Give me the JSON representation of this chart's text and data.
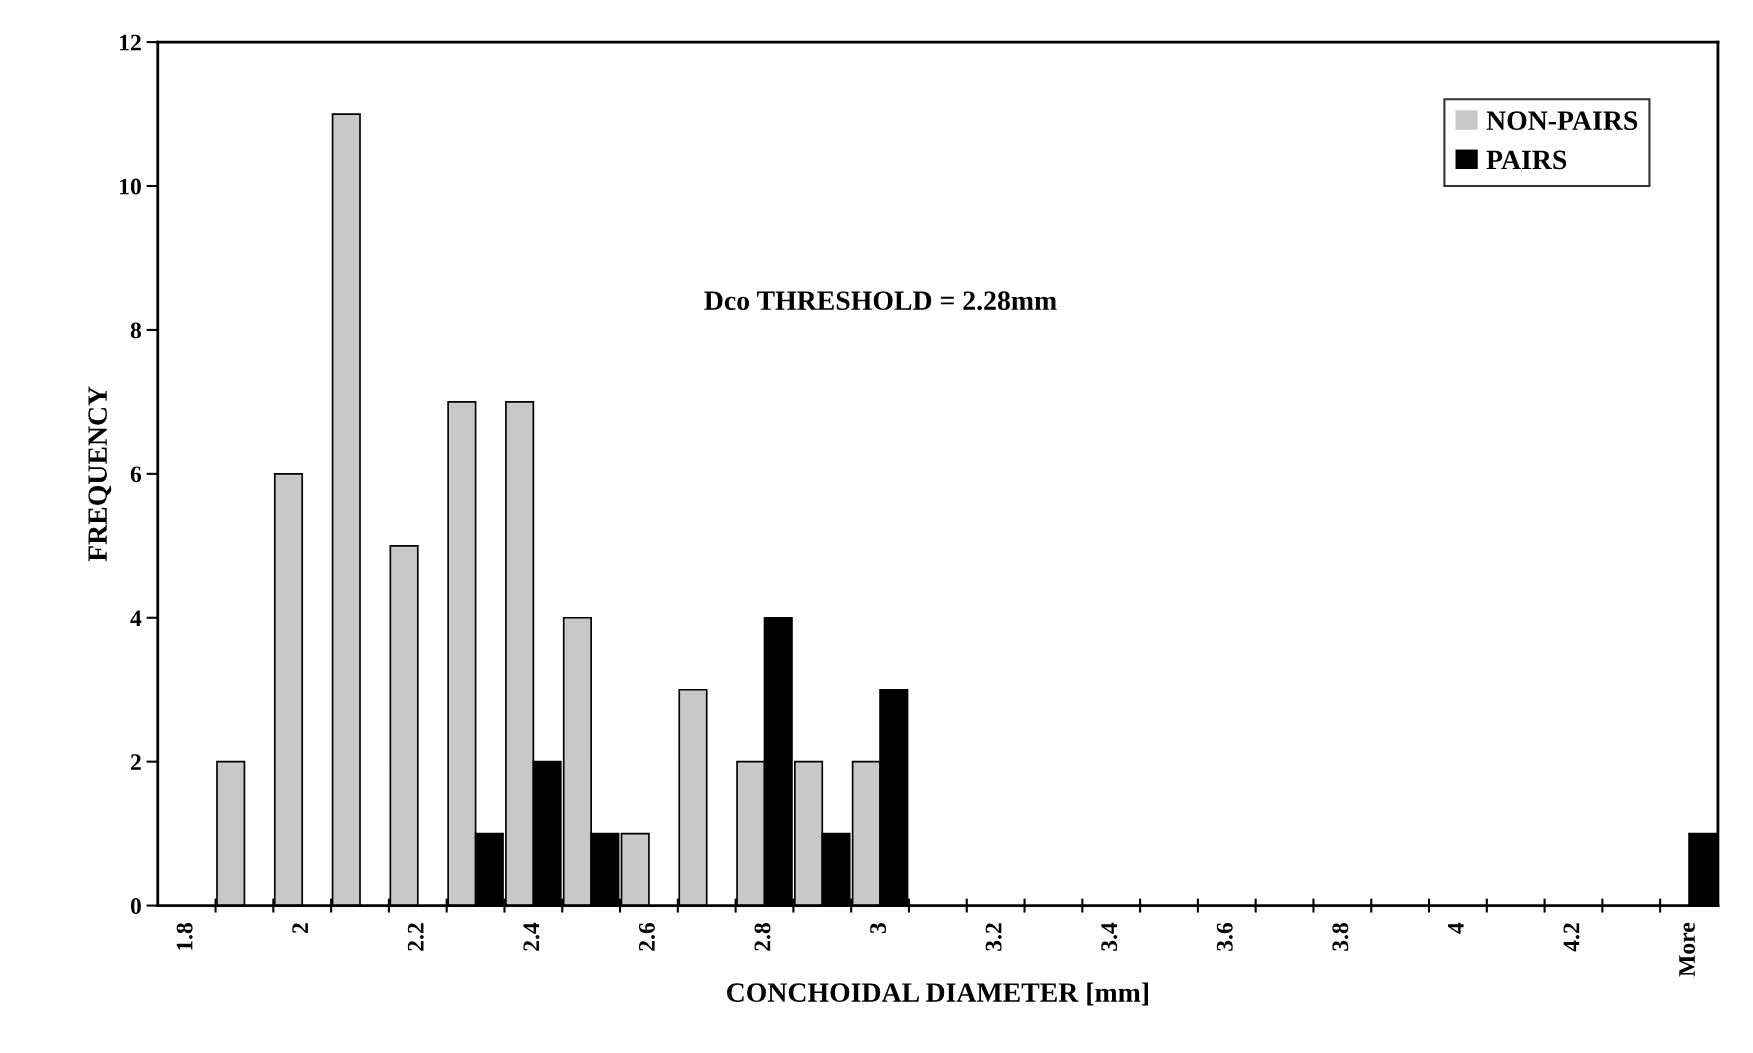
{
  "chart_data": {
    "type": "bar",
    "xlabel": "CONCHOIDAL DIAMETER [mm]",
    "ylabel": "FREQUENCY",
    "categories": [
      "1.8",
      null,
      "2",
      null,
      "2.2",
      null,
      "2.4",
      null,
      "2.6",
      null,
      "2.8",
      null,
      "3",
      null,
      "3.2",
      null,
      "3.4",
      null,
      "3.6",
      null,
      "3.8",
      null,
      "4",
      null,
      "4.2",
      null,
      "More"
    ],
    "series": [
      {
        "name": "NON-PAIRS",
        "color": "#c8c8c8",
        "values": [
          0,
          2,
          6,
          11,
          5,
          7,
          7,
          4,
          1,
          3,
          2,
          2,
          2,
          0,
          0,
          0,
          0,
          0,
          0,
          0,
          0,
          0,
          0,
          0,
          0,
          0,
          0
        ]
      },
      {
        "name": "PAIRS",
        "color": "#000000",
        "values": [
          0,
          0,
          0,
          0,
          0,
          1,
          2,
          1,
          0,
          0,
          4,
          1,
          3,
          0,
          0,
          0,
          0,
          0,
          0,
          0,
          0,
          0,
          0,
          0,
          0,
          0,
          1
        ]
      }
    ],
    "ylim": [
      0,
      12
    ],
    "yticks": [
      0,
      2,
      4,
      6,
      8,
      10,
      12
    ],
    "grid": false,
    "legend": "top right",
    "annotations": [
      "Dco THRESHOLD = 2.28mm"
    ]
  }
}
